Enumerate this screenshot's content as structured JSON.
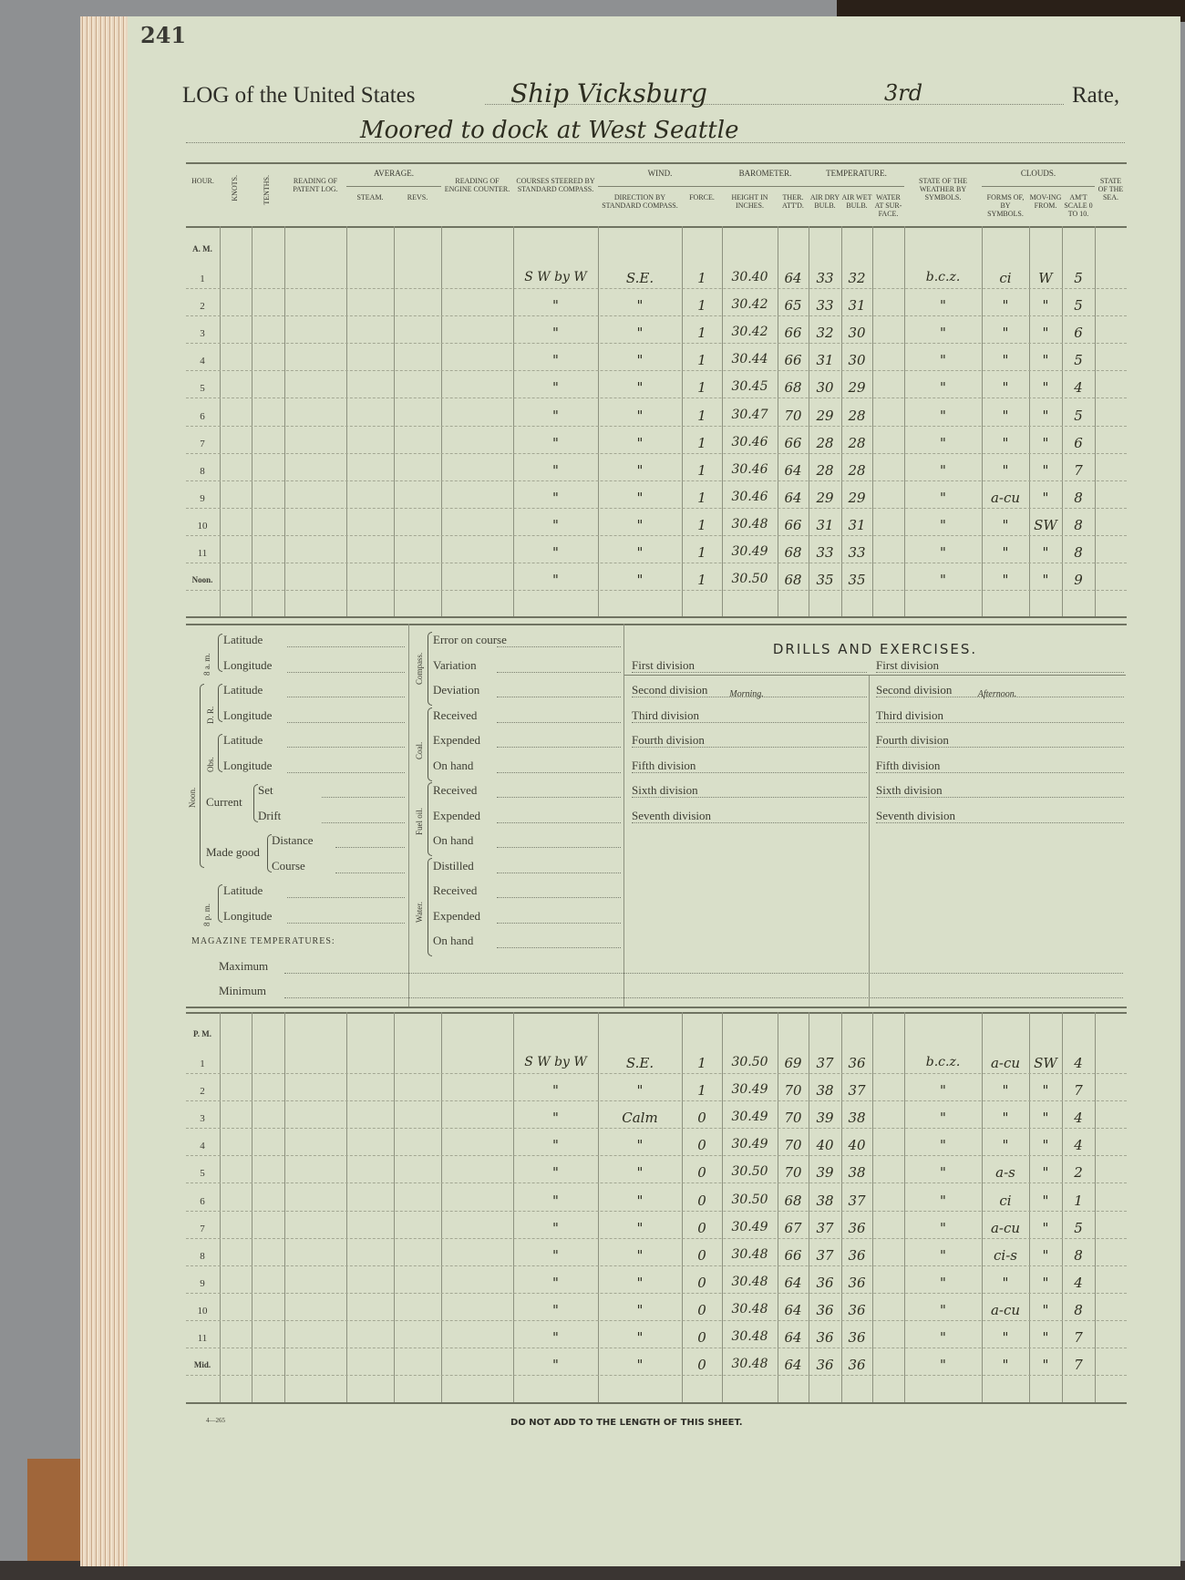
{
  "page_number": "241",
  "header": {
    "title_prefix": "LOG of the United States",
    "vessel": "Ship Vicksburg",
    "rate_value": "3rd",
    "rate_label": "Rate,",
    "location": "Moored to dock at West Seattle"
  },
  "columns": {
    "hour": "Hour.",
    "knots": "Knots.",
    "tenths": "Tenths.",
    "patent_log": "Reading of Patent Log.",
    "average": "Average.",
    "steam": "Steam.",
    "revs": "Revs.",
    "engine_counter": "Reading of Engine Counter.",
    "courses": "Courses steered by standard compass.",
    "wind": "Wind.",
    "direction": "Direction by standard compass.",
    "force": "Force.",
    "barometer": "Barometer.",
    "height": "Height in inches.",
    "ther": "Ther. Att'd.",
    "temperature": "Temperature.",
    "dry": "Air dry bulb.",
    "wet": "Air wet bulb.",
    "water": "Water at sur-face.",
    "weather": "State of the weather by symbols.",
    "clouds": "Clouds.",
    "forms": "Forms of, by symbols.",
    "moving": "Mov-ing from.",
    "amount": "Am't scale 0 to 10.",
    "sea": "State of the sea."
  },
  "am": {
    "label": "A. M.",
    "rows": [
      {
        "hour": "1",
        "course": "S W by W",
        "dir": "S.E.",
        "force": "1",
        "baro": "30.40",
        "ther": "64",
        "dry": "33",
        "wet": "32",
        "weather": "b.c.z.",
        "forms": "ci",
        "moving": "W",
        "amount": "5"
      },
      {
        "hour": "2",
        "course": "\"",
        "dir": "\"",
        "force": "1",
        "baro": "30.42",
        "ther": "65",
        "dry": "33",
        "wet": "31",
        "weather": "\"",
        "forms": "\"",
        "moving": "\"",
        "amount": "5"
      },
      {
        "hour": "3",
        "course": "\"",
        "dir": "\"",
        "force": "1",
        "baro": "30.42",
        "ther": "66",
        "dry": "32",
        "wet": "30",
        "weather": "\"",
        "forms": "\"",
        "moving": "\"",
        "amount": "6"
      },
      {
        "hour": "4",
        "course": "\"",
        "dir": "\"",
        "force": "1",
        "baro": "30.44",
        "ther": "66",
        "dry": "31",
        "wet": "30",
        "weather": "\"",
        "forms": "\"",
        "moving": "\"",
        "amount": "5"
      },
      {
        "hour": "5",
        "course": "\"",
        "dir": "\"",
        "force": "1",
        "baro": "30.45",
        "ther": "68",
        "dry": "30",
        "wet": "29",
        "weather": "\"",
        "forms": "\"",
        "moving": "\"",
        "amount": "4"
      },
      {
        "hour": "6",
        "course": "\"",
        "dir": "\"",
        "force": "1",
        "baro": "30.47",
        "ther": "70",
        "dry": "29",
        "wet": "28",
        "weather": "\"",
        "forms": "\"",
        "moving": "\"",
        "amount": "5"
      },
      {
        "hour": "7",
        "course": "\"",
        "dir": "\"",
        "force": "1",
        "baro": "30.46",
        "ther": "66",
        "dry": "28",
        "wet": "28",
        "weather": "\"",
        "forms": "\"",
        "moving": "\"",
        "amount": "6"
      },
      {
        "hour": "8",
        "course": "\"",
        "dir": "\"",
        "force": "1",
        "baro": "30.46",
        "ther": "64",
        "dry": "28",
        "wet": "28",
        "weather": "\"",
        "forms": "\"",
        "moving": "\"",
        "amount": "7"
      },
      {
        "hour": "9",
        "course": "\"",
        "dir": "\"",
        "force": "1",
        "baro": "30.46",
        "ther": "64",
        "dry": "29",
        "wet": "29",
        "weather": "\"",
        "forms": "a-cu",
        "moving": "\"",
        "amount": "8"
      },
      {
        "hour": "10",
        "course": "\"",
        "dir": "\"",
        "force": "1",
        "baro": "30.48",
        "ther": "66",
        "dry": "31",
        "wet": "31",
        "weather": "\"",
        "forms": "\"",
        "moving": "SW",
        "amount": "8"
      },
      {
        "hour": "11",
        "course": "\"",
        "dir": "\"",
        "force": "1",
        "baro": "30.49",
        "ther": "68",
        "dry": "33",
        "wet": "33",
        "weather": "\"",
        "forms": "\"",
        "moving": "\"",
        "amount": "8"
      },
      {
        "hour": "Noon.",
        "course": "\"",
        "dir": "\"",
        "force": "1",
        "baro": "30.50",
        "ther": "68",
        "dry": "35",
        "wet": "35",
        "weather": "\"",
        "forms": "\"",
        "moving": "\"",
        "amount": "9"
      }
    ]
  },
  "pm": {
    "label": "P. M.",
    "rows": [
      {
        "hour": "1",
        "course": "S W by W",
        "dir": "S.E.",
        "force": "1",
        "baro": "30.50",
        "ther": "69",
        "dry": "37",
        "wet": "36",
        "weather": "b.c.z.",
        "forms": "a-cu",
        "moving": "SW",
        "amount": "4"
      },
      {
        "hour": "2",
        "course": "\"",
        "dir": "\"",
        "force": "1",
        "baro": "30.49",
        "ther": "70",
        "dry": "38",
        "wet": "37",
        "weather": "\"",
        "forms": "\"",
        "moving": "\"",
        "amount": "7"
      },
      {
        "hour": "3",
        "course": "\"",
        "dir": "Calm",
        "force": "0",
        "baro": "30.49",
        "ther": "70",
        "dry": "39",
        "wet": "38",
        "weather": "\"",
        "forms": "\"",
        "moving": "\"",
        "amount": "4"
      },
      {
        "hour": "4",
        "course": "\"",
        "dir": "\"",
        "force": "0",
        "baro": "30.49",
        "ther": "70",
        "dry": "40",
        "wet": "40",
        "weather": "\"",
        "forms": "\"",
        "moving": "\"",
        "amount": "4"
      },
      {
        "hour": "5",
        "course": "\"",
        "dir": "\"",
        "force": "0",
        "baro": "30.50",
        "ther": "70",
        "dry": "39",
        "wet": "38",
        "weather": "\"",
        "forms": "a-s",
        "moving": "\"",
        "amount": "2"
      },
      {
        "hour": "6",
        "course": "\"",
        "dir": "\"",
        "force": "0",
        "baro": "30.50",
        "ther": "68",
        "dry": "38",
        "wet": "37",
        "weather": "\"",
        "forms": "ci",
        "moving": "\"",
        "amount": "1"
      },
      {
        "hour": "7",
        "course": "\"",
        "dir": "\"",
        "force": "0",
        "baro": "30.49",
        "ther": "67",
        "dry": "37",
        "wet": "36",
        "weather": "\"",
        "forms": "a-cu",
        "moving": "\"",
        "amount": "5"
      },
      {
        "hour": "8",
        "course": "\"",
        "dir": "\"",
        "force": "0",
        "baro": "30.48",
        "ther": "66",
        "dry": "37",
        "wet": "36",
        "weather": "\"",
        "forms": "ci-s",
        "moving": "\"",
        "amount": "8"
      },
      {
        "hour": "9",
        "course": "\"",
        "dir": "\"",
        "force": "0",
        "baro": "30.48",
        "ther": "64",
        "dry": "36",
        "wet": "36",
        "weather": "\"",
        "forms": "\"",
        "moving": "\"",
        "amount": "4"
      },
      {
        "hour": "10",
        "course": "\"",
        "dir": "\"",
        "force": "0",
        "baro": "30.48",
        "ther": "64",
        "dry": "36",
        "wet": "36",
        "weather": "\"",
        "forms": "a-cu",
        "moving": "\"",
        "amount": "8"
      },
      {
        "hour": "11",
        "course": "\"",
        "dir": "\"",
        "force": "0",
        "baro": "30.48",
        "ther": "64",
        "dry": "36",
        "wet": "36",
        "weather": "\"",
        "forms": "\"",
        "moving": "\"",
        "amount": "7"
      },
      {
        "hour": "Mid.",
        "course": "\"",
        "dir": "\"",
        "force": "0",
        "baro": "30.48",
        "ther": "64",
        "dry": "36",
        "wet": "36",
        "weather": "\"",
        "forms": "\"",
        "moving": "\"",
        "amount": "7"
      }
    ]
  },
  "position": {
    "am8": "8 a. m.",
    "noon": "Noon.",
    "dr": "D. R.",
    "obs": "Obs.",
    "pm8": "8 p. m.",
    "latitude": "Latitude",
    "longitude": "Longitude",
    "current": "Current",
    "set": "Set",
    "drift": "Drift",
    "made_good": "Made good",
    "distance": "Distance",
    "course": "Course",
    "magazine": "Magazine temperatures:",
    "maximum": "Maximum",
    "minimum": "Minimum"
  },
  "stores": {
    "compass": "Compass.",
    "error": "Error on course",
    "variation": "Variation",
    "deviation": "Deviation",
    "coal": "Coal.",
    "fuel_oil": "Fuel oil.",
    "water": "Water.",
    "received": "Received",
    "expended": "Expended",
    "on_hand": "On hand",
    "distilled": "Distilled"
  },
  "drills": {
    "title": "DRILLS AND EXERCISES.",
    "morning": "Morning.",
    "afternoon": "Afternoon.",
    "divisions": [
      "First division",
      "Second division",
      "Third division",
      "Fourth division",
      "Fifth division",
      "Sixth division",
      "Seventh division"
    ]
  },
  "footer": {
    "form_number": "4—265",
    "notice": "DO NOT ADD TO THE LENGTH OF THIS SHEET."
  }
}
